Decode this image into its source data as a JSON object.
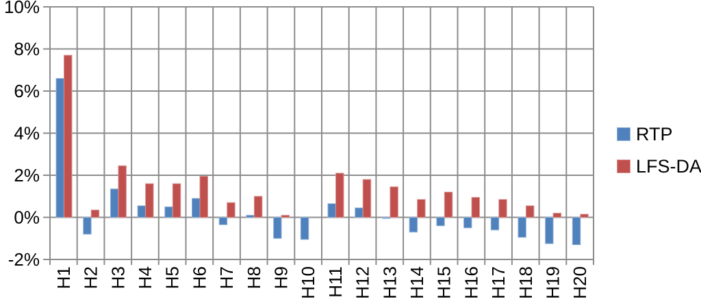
{
  "chart_data": {
    "type": "bar",
    "title": "",
    "xlabel": "",
    "ylabel": "",
    "categories": [
      "H1",
      "H2",
      "H3",
      "H4",
      "H5",
      "H6",
      "H7",
      "H8",
      "H9",
      "H10",
      "H11",
      "H12",
      "H13",
      "H14",
      "H15",
      "H16",
      "H17",
      "H18",
      "H19",
      "H20"
    ],
    "series": [
      {
        "name": "RTP",
        "color": "#4f81bd",
        "border_color": "#95b3d7",
        "values": [
          6.6,
          -0.8,
          1.35,
          0.55,
          0.5,
          0.9,
          -0.35,
          0.1,
          -1.0,
          -1.05,
          0.65,
          0.45,
          -0.05,
          -0.7,
          -0.4,
          -0.5,
          -0.6,
          -0.95,
          -1.25,
          -1.3
        ]
      },
      {
        "name": "LFS-DA",
        "color": "#c0504d",
        "border_color": "#d99694",
        "values": [
          7.7,
          0.35,
          2.45,
          1.6,
          1.6,
          1.95,
          0.7,
          1.0,
          0.1,
          0.0,
          2.1,
          1.8,
          1.45,
          0.85,
          1.2,
          0.95,
          0.85,
          0.55,
          0.2,
          0.15
        ]
      }
    ],
    "y_axis": {
      "tick_labels": [
        "10%",
        "8%",
        "6%",
        "4%",
        "2%",
        "0%",
        "-2%"
      ],
      "tick_values": [
        10,
        8,
        6,
        4,
        2,
        0,
        -2
      ],
      "ylim": [
        -2,
        10
      ]
    },
    "grid": true,
    "legend_position": "right",
    "colors": {
      "gridline": "#8c8c8c",
      "text": "#000000",
      "background": "#ffffff"
    }
  }
}
